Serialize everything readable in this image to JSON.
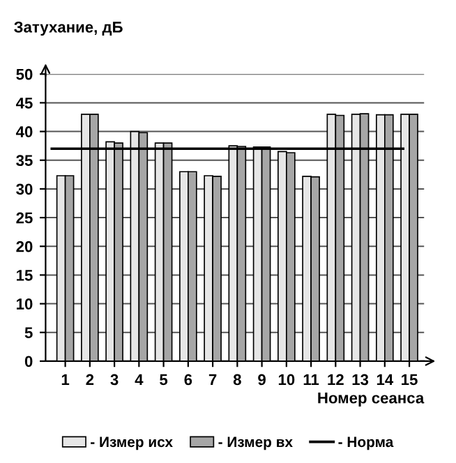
{
  "chart_data": {
    "type": "bar",
    "ylabel": "Затухание, дБ",
    "xlabel": "Номер сеанса",
    "categories": [
      "1",
      "2",
      "3",
      "4",
      "5",
      "6",
      "7",
      "8",
      "9",
      "10",
      "11",
      "12",
      "13",
      "14",
      "15"
    ],
    "series": [
      {
        "name": "- Измер исх",
        "color": "#e6e6e6",
        "values": [
          32.3,
          43,
          38.2,
          40,
          38,
          33,
          32.3,
          37.5,
          37.3,
          36.5,
          32.2,
          43,
          43,
          42.9,
          43
        ]
      },
      {
        "name": "- Измер вх",
        "color": "#a6a6a6",
        "values": [
          32.3,
          43,
          38,
          39.8,
          38,
          33,
          32.2,
          37.4,
          37.3,
          36.3,
          32.1,
          42.8,
          43.1,
          42.9,
          43
        ]
      }
    ],
    "ref_lines": [
      {
        "axis": "y",
        "value": 37,
        "label": "- Норма",
        "color": "#000000"
      }
    ],
    "ylim": [
      0,
      50
    ],
    "yticks": [
      0,
      5,
      10,
      15,
      20,
      25,
      30,
      35,
      40,
      45,
      50
    ],
    "grid": "y",
    "legend": "bottom"
  }
}
